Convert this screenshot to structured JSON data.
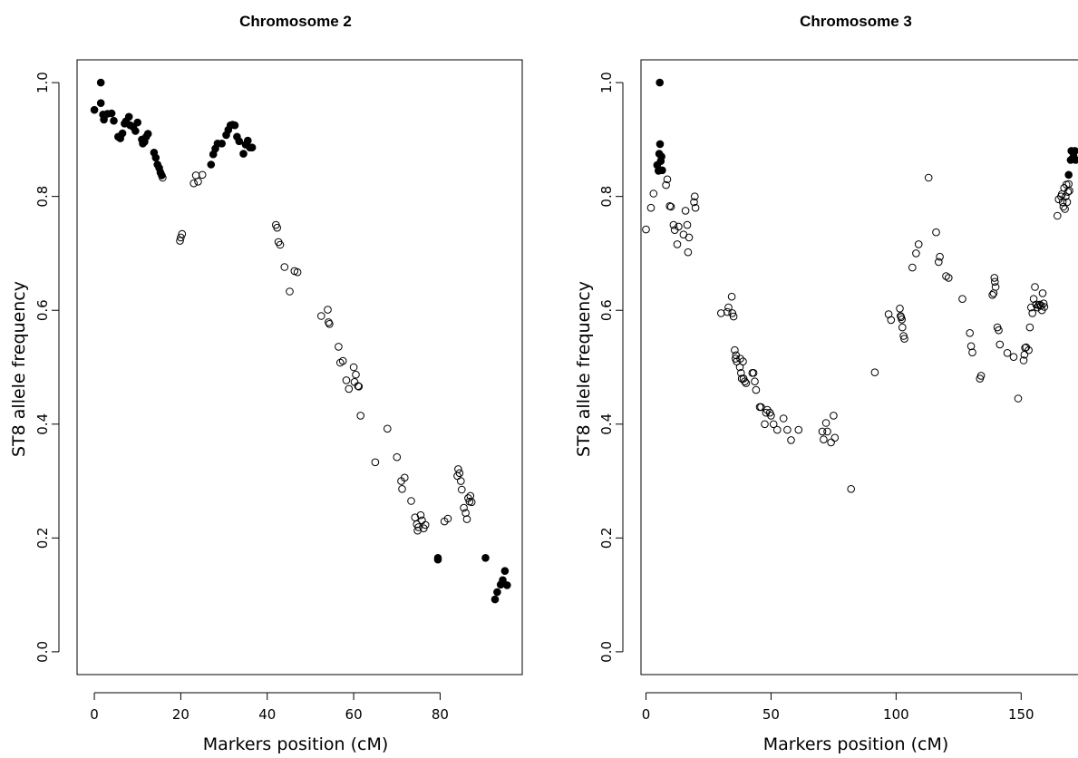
{
  "chart_data": [
    {
      "type": "scatter",
      "title": "Chromosome 2",
      "xlabel": "Markers position (cM)",
      "ylabel": "ST8 allele frequency",
      "xlim": [
        -4,
        99
      ],
      "ylim": [
        -0.04,
        1.04
      ],
      "xticks": [
        "0",
        "20",
        "40",
        "60",
        "80"
      ],
      "yticks": [
        "0.0",
        "0.2",
        "0.4",
        "0.6",
        "0.8",
        "1.0"
      ],
      "grid": false,
      "legend": "none",
      "series": [
        {
          "marker": "filled",
          "points": [
            [
              0.0,
              0.952
            ],
            [
              1.5,
              1.0
            ],
            [
              1.5,
              0.964
            ],
            [
              2.0,
              0.944
            ],
            [
              2.2,
              0.935
            ],
            [
              3.0,
              0.945
            ],
            [
              4.0,
              0.946
            ],
            [
              4.5,
              0.933
            ],
            [
              5.5,
              0.905
            ],
            [
              6.0,
              0.902
            ],
            [
              6.5,
              0.911
            ],
            [
              7.0,
              0.928
            ],
            [
              7.3,
              0.932
            ],
            [
              8.0,
              0.94
            ],
            [
              8.3,
              0.925
            ],
            [
              9.0,
              0.922
            ],
            [
              9.5,
              0.915
            ],
            [
              10.0,
              0.93
            ],
            [
              11.0,
              0.9
            ],
            [
              11.2,
              0.893
            ],
            [
              11.6,
              0.896
            ],
            [
              12.0,
              0.905
            ],
            [
              12.4,
              0.91
            ],
            [
              13.8,
              0.877
            ],
            [
              14.2,
              0.868
            ],
            [
              14.6,
              0.856
            ],
            [
              15.0,
              0.85
            ],
            [
              15.3,
              0.842
            ],
            [
              15.6,
              0.837
            ],
            [
              27.0,
              0.856
            ],
            [
              27.5,
              0.874
            ],
            [
              28.0,
              0.884
            ],
            [
              28.5,
              0.893
            ],
            [
              29.5,
              0.893
            ],
            [
              30.5,
              0.908
            ],
            [
              31.0,
              0.917
            ],
            [
              31.5,
              0.925
            ],
            [
              32.0,
              0.926
            ],
            [
              32.5,
              0.925
            ],
            [
              33.0,
              0.905
            ],
            [
              33.5,
              0.897
            ],
            [
              34.5,
              0.875
            ],
            [
              35.0,
              0.891
            ],
            [
              35.5,
              0.898
            ],
            [
              36.0,
              0.886
            ],
            [
              36.5,
              0.886
            ],
            [
              79.5,
              0.165
            ],
            [
              79.5,
              0.162
            ],
            [
              90.5,
              0.165
            ],
            [
              92.7,
              0.092
            ],
            [
              93.2,
              0.105
            ],
            [
              94.0,
              0.118
            ],
            [
              94.5,
              0.126
            ],
            [
              95.0,
              0.142
            ],
            [
              95.5,
              0.117
            ]
          ]
        },
        {
          "marker": "open",
          "points": [
            [
              15.8,
              0.833
            ],
            [
              19.8,
              0.722
            ],
            [
              20.0,
              0.728
            ],
            [
              20.3,
              0.734
            ],
            [
              23.0,
              0.823
            ],
            [
              23.5,
              0.837
            ],
            [
              24.0,
              0.826
            ],
            [
              25.0,
              0.838
            ],
            [
              42.0,
              0.75
            ],
            [
              42.3,
              0.745
            ],
            [
              42.6,
              0.72
            ],
            [
              43.0,
              0.715
            ],
            [
              44.0,
              0.676
            ],
            [
              45.2,
              0.633
            ],
            [
              46.3,
              0.669
            ],
            [
              47.0,
              0.667
            ],
            [
              52.5,
              0.59
            ],
            [
              54.0,
              0.601
            ],
            [
              54.2,
              0.579
            ],
            [
              54.4,
              0.576
            ],
            [
              56.5,
              0.536
            ],
            [
              56.9,
              0.508
            ],
            [
              57.5,
              0.511
            ],
            [
              58.3,
              0.477
            ],
            [
              58.9,
              0.462
            ],
            [
              60.0,
              0.5
            ],
            [
              60.2,
              0.474
            ],
            [
              60.5,
              0.487
            ],
            [
              61.0,
              0.467
            ],
            [
              61.2,
              0.466
            ],
            [
              61.6,
              0.415
            ],
            [
              65.0,
              0.333
            ],
            [
              67.8,
              0.392
            ],
            [
              70.0,
              0.342
            ],
            [
              71.0,
              0.3
            ],
            [
              71.2,
              0.286
            ],
            [
              71.8,
              0.306
            ],
            [
              73.3,
              0.265
            ],
            [
              74.2,
              0.236
            ],
            [
              74.6,
              0.224
            ],
            [
              74.8,
              0.213
            ],
            [
              75.0,
              0.219
            ],
            [
              75.5,
              0.24
            ],
            [
              75.8,
              0.231
            ],
            [
              76.2,
              0.217
            ],
            [
              76.6,
              0.223
            ],
            [
              81.0,
              0.229
            ],
            [
              81.8,
              0.234
            ],
            [
              84.0,
              0.309
            ],
            [
              84.2,
              0.321
            ],
            [
              84.5,
              0.314
            ],
            [
              84.8,
              0.3
            ],
            [
              85.0,
              0.285
            ],
            [
              85.5,
              0.253
            ],
            [
              85.9,
              0.244
            ],
            [
              86.2,
              0.233
            ],
            [
              86.5,
              0.27
            ],
            [
              86.8,
              0.264
            ],
            [
              87.0,
              0.274
            ],
            [
              87.3,
              0.263
            ]
          ]
        }
      ]
    },
    {
      "type": "scatter",
      "title": "Chromosome 3",
      "xlabel": "Markers position (cM)",
      "ylabel": "ST8 allele frequency",
      "xlim": [
        -2,
        176
      ],
      "ylim": [
        -0.04,
        1.04
      ],
      "xticks": [
        "0",
        "50",
        "100",
        "150"
      ],
      "yticks": [
        "0.0",
        "0.2",
        "0.4",
        "0.6",
        "0.8",
        "1.0"
      ],
      "grid": false,
      "legend": "none",
      "series": [
        {
          "marker": "filled",
          "points": [
            [
              4.5,
              0.855
            ],
            [
              5.0,
              0.845
            ],
            [
              5.3,
              0.875
            ],
            [
              5.5,
              1.0
            ],
            [
              5.6,
              0.892
            ],
            [
              5.9,
              0.862
            ],
            [
              6.2,
              0.87
            ],
            [
              6.5,
              0.846
            ],
            [
              169.0,
              0.838
            ],
            [
              169.8,
              0.864
            ],
            [
              170.1,
              0.88
            ],
            [
              170.6,
              0.867
            ],
            [
              171.0,
              0.87
            ],
            [
              171.5,
              0.88
            ],
            [
              171.8,
              0.864
            ]
          ]
        },
        {
          "marker": "open",
          "points": [
            [
              0.0,
              0.742
            ],
            [
              2.0,
              0.78
            ],
            [
              3.0,
              0.805
            ],
            [
              8.0,
              0.82
            ],
            [
              8.5,
              0.83
            ],
            [
              9.5,
              0.783
            ],
            [
              10.0,
              0.782
            ],
            [
              11.0,
              0.75
            ],
            [
              11.5,
              0.741
            ],
            [
              12.5,
              0.716
            ],
            [
              13.0,
              0.747
            ],
            [
              15.0,
              0.733
            ],
            [
              15.8,
              0.775
            ],
            [
              16.5,
              0.75
            ],
            [
              16.8,
              0.702
            ],
            [
              17.2,
              0.728
            ],
            [
              19.2,
              0.79
            ],
            [
              19.5,
              0.8
            ],
            [
              19.8,
              0.78
            ],
            [
              30.0,
              0.595
            ],
            [
              32.5,
              0.597
            ],
            [
              33.0,
              0.605
            ],
            [
              34.3,
              0.624
            ],
            [
              34.5,
              0.595
            ],
            [
              35.0,
              0.589
            ],
            [
              35.5,
              0.53
            ],
            [
              35.8,
              0.515
            ],
            [
              36.0,
              0.521
            ],
            [
              36.3,
              0.51
            ],
            [
              37.5,
              0.5
            ],
            [
              37.7,
              0.515
            ],
            [
              38.0,
              0.49
            ],
            [
              38.3,
              0.48
            ],
            [
              38.8,
              0.51
            ],
            [
              39.0,
              0.48
            ],
            [
              39.5,
              0.475
            ],
            [
              40.0,
              0.472
            ],
            [
              42.5,
              0.49
            ],
            [
              43.0,
              0.49
            ],
            [
              43.5,
              0.475
            ],
            [
              44.0,
              0.46
            ],
            [
              45.5,
              0.43
            ],
            [
              46.0,
              0.43
            ],
            [
              47.5,
              0.4
            ],
            [
              48.0,
              0.42
            ],
            [
              48.5,
              0.425
            ],
            [
              49.5,
              0.42
            ],
            [
              50.0,
              0.415
            ],
            [
              51.0,
              0.4
            ],
            [
              52.5,
              0.39
            ],
            [
              55.0,
              0.41
            ],
            [
              56.5,
              0.39
            ],
            [
              58.0,
              0.372
            ],
            [
              61.0,
              0.39
            ],
            [
              70.5,
              0.387
            ],
            [
              71.0,
              0.373
            ],
            [
              72.0,
              0.402
            ],
            [
              72.5,
              0.387
            ],
            [
              74.0,
              0.368
            ],
            [
              75.0,
              0.415
            ],
            [
              75.5,
              0.376
            ],
            [
              82.0,
              0.286
            ],
            [
              91.5,
              0.491
            ],
            [
              97.0,
              0.593
            ],
            [
              98.0,
              0.583
            ],
            [
              101.5,
              0.603
            ],
            [
              101.8,
              0.59
            ],
            [
              102.0,
              0.588
            ],
            [
              102.3,
              0.584
            ],
            [
              102.5,
              0.57
            ],
            [
              103.0,
              0.555
            ],
            [
              103.3,
              0.55
            ],
            [
              106.5,
              0.675
            ],
            [
              108.0,
              0.7
            ],
            [
              109.0,
              0.716
            ],
            [
              113.0,
              0.833
            ],
            [
              116.0,
              0.737
            ],
            [
              117.0,
              0.685
            ],
            [
              117.5,
              0.694
            ],
            [
              120.0,
              0.66
            ],
            [
              121.0,
              0.657
            ],
            [
              126.5,
              0.62
            ],
            [
              129.5,
              0.56
            ],
            [
              130.0,
              0.537
            ],
            [
              130.5,
              0.526
            ],
            [
              133.5,
              0.48
            ],
            [
              134.0,
              0.485
            ],
            [
              138.5,
              0.627
            ],
            [
              139.0,
              0.63
            ],
            [
              139.3,
              0.657
            ],
            [
              139.5,
              0.65
            ],
            [
              139.8,
              0.641
            ],
            [
              140.5,
              0.57
            ],
            [
              141.0,
              0.565
            ],
            [
              141.5,
              0.54
            ],
            [
              144.5,
              0.525
            ],
            [
              147.0,
              0.518
            ],
            [
              148.8,
              0.445
            ],
            [
              151.0,
              0.512
            ],
            [
              151.3,
              0.522
            ],
            [
              151.6,
              0.534
            ],
            [
              152.0,
              0.535
            ],
            [
              153.0,
              0.53
            ],
            [
              153.5,
              0.57
            ],
            [
              154.0,
              0.605
            ],
            [
              154.5,
              0.595
            ],
            [
              155.0,
              0.62
            ],
            [
              155.5,
              0.641
            ],
            [
              156.0,
              0.61
            ],
            [
              156.5,
              0.605
            ],
            [
              157.0,
              0.609
            ],
            [
              157.5,
              0.61
            ],
            [
              158.0,
              0.608
            ],
            [
              158.3,
              0.6
            ],
            [
              158.6,
              0.63
            ],
            [
              159.0,
              0.612
            ],
            [
              159.3,
              0.606
            ],
            [
              164.5,
              0.766
            ],
            [
              165.0,
              0.795
            ],
            [
              166.0,
              0.8
            ],
            [
              166.3,
              0.804
            ],
            [
              166.6,
              0.79
            ],
            [
              166.9,
              0.782
            ],
            [
              167.2,
              0.815
            ],
            [
              167.5,
              0.778
            ],
            [
              167.8,
              0.8
            ],
            [
              168.1,
              0.821
            ],
            [
              168.4,
              0.79
            ],
            [
              168.7,
              0.808
            ],
            [
              169.0,
              0.822
            ],
            [
              169.3,
              0.81
            ]
          ]
        }
      ]
    }
  ]
}
